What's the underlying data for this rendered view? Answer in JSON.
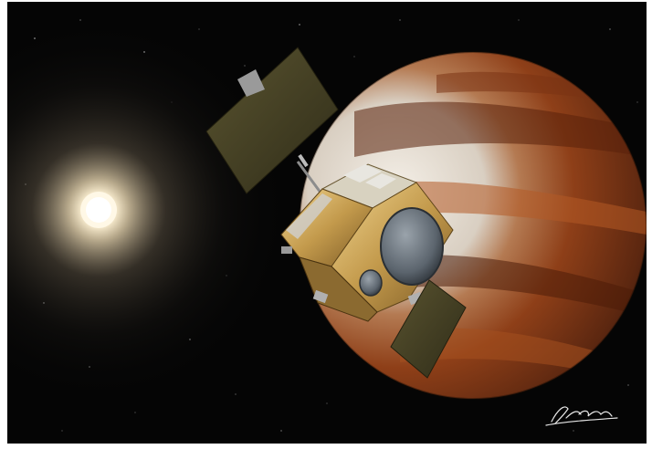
{
  "scene": {
    "subject": "spacecraft-near-planet",
    "colors": {
      "space": "#050505",
      "sun_core": "#fff6dc",
      "planet_lit": "#e9e3da",
      "planet_dark": "#6e2f14",
      "planet_band": "#a24e20",
      "gold_foil": "#c9a55a",
      "solar_panel": "#4a4424"
    },
    "elements": [
      "sun-glow",
      "planet",
      "spacecraft",
      "solar-panel-left",
      "solar-panel-right",
      "antenna-dish",
      "artist-signature"
    ]
  }
}
